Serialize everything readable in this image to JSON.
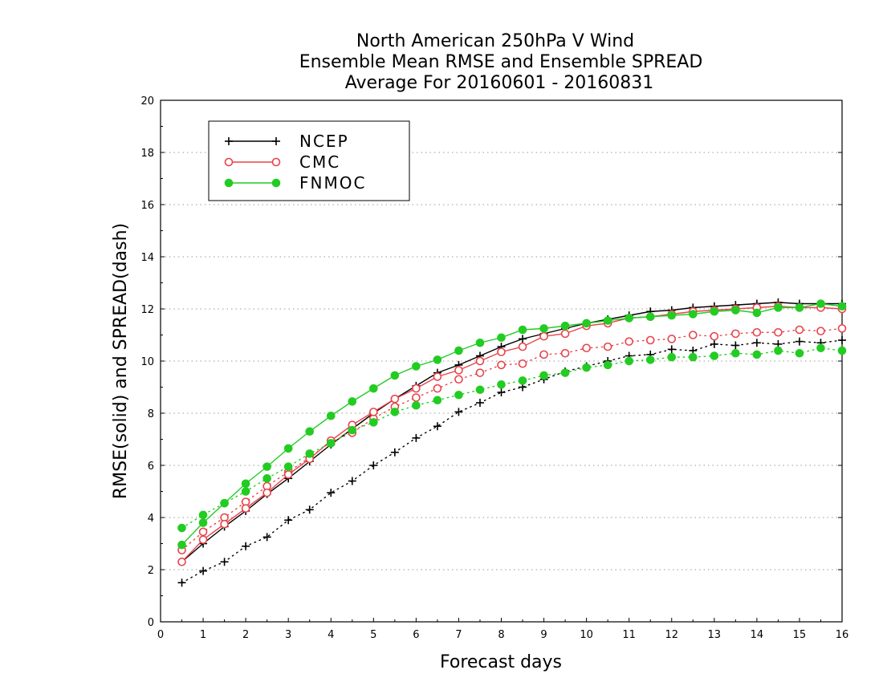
{
  "chart_data": {
    "type": "line",
    "title_lines": [
      "North American 250hPa V Wind",
      "Ensemble Mean RMSE and Ensemble SPREAD",
      "Average For 20160601 - 20160831"
    ],
    "xlabel": "Forecast days",
    "ylabel": "RMSE(solid) and SPREAD(dash)",
    "xlim": [
      0,
      16
    ],
    "ylim": [
      0,
      20
    ],
    "xticks": [
      "0",
      "1",
      "2",
      "3",
      "4",
      "5",
      "6",
      "7",
      "8",
      "9",
      "10",
      "11",
      "12",
      "13",
      "14",
      "15",
      "16"
    ],
    "yticks": [
      "0",
      "2",
      "4",
      "6",
      "8",
      "10",
      "12",
      "14",
      "16",
      "18",
      "20"
    ],
    "grid": "horizontal dotted",
    "legend_position": "top-left",
    "x": [
      0.5,
      1,
      1.5,
      2,
      2.5,
      3,
      3.5,
      4,
      4.5,
      5,
      5.5,
      6,
      6.5,
      7,
      7.5,
      8,
      8.5,
      9,
      9.5,
      10,
      10.5,
      11,
      11.5,
      12,
      12.5,
      13,
      13.5,
      14,
      14.5,
      15,
      15.5,
      16
    ],
    "series": [
      {
        "name": "NCEP",
        "color": "#000000",
        "marker": "plus",
        "rmse": [
          2.3,
          3.0,
          3.65,
          4.25,
          4.9,
          5.5,
          6.15,
          6.8,
          7.4,
          8.0,
          8.55,
          9.05,
          9.55,
          9.85,
          10.2,
          10.55,
          10.85,
          11.05,
          11.25,
          11.45,
          11.6,
          11.75,
          11.9,
          11.95,
          12.05,
          12.1,
          12.15,
          12.2,
          12.25,
          12.2,
          12.2,
          12.2
        ],
        "spread": [
          1.5,
          1.95,
          2.3,
          2.9,
          3.25,
          3.9,
          4.3,
          4.95,
          5.4,
          6.0,
          6.5,
          7.05,
          7.5,
          8.05,
          8.4,
          8.8,
          9.0,
          9.3,
          9.6,
          9.8,
          10.0,
          10.2,
          10.25,
          10.45,
          10.4,
          10.65,
          10.6,
          10.7,
          10.65,
          10.75,
          10.7,
          10.8
        ]
      },
      {
        "name": "CMC",
        "color": "#e8434a",
        "marker": "open-circle",
        "rmse": [
          2.3,
          3.15,
          3.75,
          4.35,
          4.95,
          5.65,
          6.25,
          6.95,
          7.55,
          8.05,
          8.55,
          8.95,
          9.4,
          9.65,
          10.0,
          10.35,
          10.55,
          10.95,
          11.05,
          11.35,
          11.45,
          11.65,
          11.7,
          11.8,
          11.9,
          11.95,
          12.0,
          12.05,
          12.1,
          12.05,
          12.05,
          12.0
        ],
        "spread": [
          2.75,
          3.45,
          4.0,
          4.6,
          5.2,
          5.75,
          6.3,
          6.9,
          7.25,
          7.8,
          8.25,
          8.6,
          8.95,
          9.3,
          9.55,
          9.85,
          9.9,
          10.25,
          10.3,
          10.5,
          10.55,
          10.75,
          10.8,
          10.85,
          11.0,
          10.95,
          11.05,
          11.1,
          11.1,
          11.2,
          11.15,
          11.25
        ]
      },
      {
        "name": "FNMOC",
        "color": "#22cc22",
        "marker": "filled-circle",
        "rmse": [
          2.95,
          3.8,
          4.55,
          5.3,
          5.95,
          6.65,
          7.3,
          7.9,
          8.45,
          8.95,
          9.45,
          9.8,
          10.05,
          10.4,
          10.7,
          10.9,
          11.2,
          11.25,
          11.35,
          11.45,
          11.55,
          11.65,
          11.7,
          11.75,
          11.8,
          11.9,
          11.95,
          11.85,
          12.05,
          12.05,
          12.2,
          12.1
        ],
        "spread": [
          3.6,
          4.1,
          4.55,
          5.0,
          5.5,
          5.95,
          6.45,
          6.85,
          7.35,
          7.65,
          8.05,
          8.3,
          8.5,
          8.7,
          8.9,
          9.1,
          9.25,
          9.45,
          9.55,
          9.75,
          9.85,
          10.0,
          10.05,
          10.15,
          10.15,
          10.2,
          10.3,
          10.25,
          10.4,
          10.3,
          10.5,
          10.4
        ]
      }
    ]
  }
}
